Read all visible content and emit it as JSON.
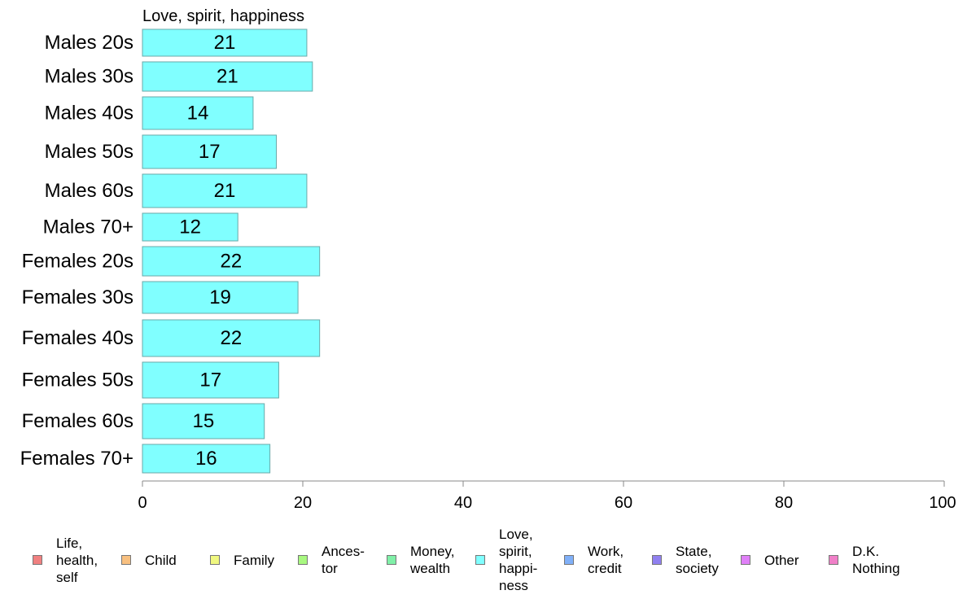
{
  "chart_data": {
    "type": "bar",
    "orientation": "horizontal",
    "title": "Love, spirit, happiness",
    "categories": [
      "Males 20s",
      "Males 30s",
      "Males 40s",
      "Males 50s",
      "Males 60s",
      "Males 70+",
      "Females 20s",
      "Females 30s",
      "Females 40s",
      "Females 50s",
      "Females 60s",
      "Females 70+"
    ],
    "series": [
      {
        "name": "Love, spirit, happiness",
        "values": [
          20.5,
          21.2,
          13.8,
          16.7,
          20.5,
          11.9,
          22.1,
          19.4,
          22.1,
          17.0,
          15.2,
          15.9
        ],
        "data_labels": [
          "21",
          "21",
          "14",
          "17",
          "21",
          "12",
          "22",
          "19",
          "22",
          "17",
          "15",
          "16"
        ],
        "color": "#80FFFF"
      }
    ],
    "xlim": [
      0,
      100
    ],
    "x_ticks": [
      "0",
      "20",
      "40",
      "60",
      "80",
      "100"
    ],
    "xlabel": "",
    "ylabel": "",
    "grid": false,
    "legend_position": "bottom"
  },
  "legend": [
    {
      "label": "Life,\nhealth,\nself",
      "color": "#F08080"
    },
    {
      "label": "Child",
      "color": "#F8C080"
    },
    {
      "label": "Family",
      "color": "#F0F880"
    },
    {
      "label": "Ances-\ntor",
      "color": "#A8F880"
    },
    {
      "label": "Money,\nwealth",
      "color": "#80F0A8"
    },
    {
      "label": "Love,\nspirit,\nhappi-\nness",
      "color": "#80FFFF"
    },
    {
      "label": "Work,\ncredit",
      "color": "#80B0F8"
    },
    {
      "label": "State,\nsociety",
      "color": "#9080F0"
    },
    {
      "label": "Other",
      "color": "#E080F8"
    },
    {
      "label": "D.K.\nNothing",
      "color": "#F080C8"
    }
  ]
}
